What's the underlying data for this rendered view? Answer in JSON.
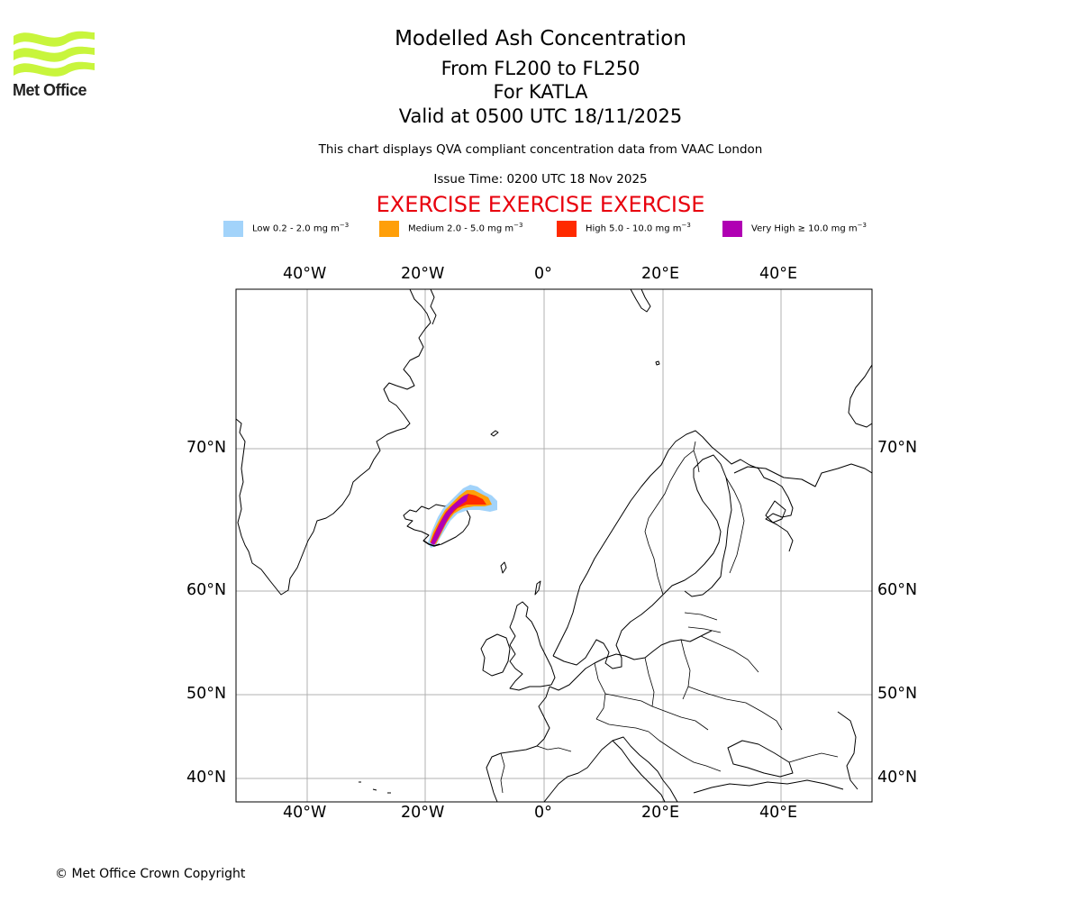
{
  "logo": {
    "text": "Met Office",
    "color": "#c8f53c"
  },
  "header": {
    "title": "Modelled Ash Concentration",
    "levels": "From FL200 to FL250",
    "volcano": "For KATLA",
    "valid": "Valid at 0500 UTC 18/11/2025",
    "description": "This chart displays QVA compliant concentration data from VAAC London",
    "issue_time": "Issue Time: 0200 UTC 18 Nov 2025",
    "exercise": "EXERCISE EXERCISE EXERCISE"
  },
  "legend": [
    {
      "label": "Low 0.2 - 2.0 mg m",
      "exp": "−3",
      "color": "#a2d3fa"
    },
    {
      "label": "Medium 2.0 - 5.0 mg m",
      "exp": "−3",
      "color": "#ff9f09"
    },
    {
      "label": "High 5.0 - 10.0 mg m",
      "exp": "−3",
      "color": "#ff2a00"
    },
    {
      "label": "Very High  ≥  10.0 mg m",
      "exp": "−3",
      "color": "#b000b3"
    }
  ],
  "map": {
    "lon_labels": [
      "40°W",
      "20°W",
      "0°",
      "20°E",
      "40°E"
    ],
    "lat_labels": [
      "70°N",
      "60°N",
      "50°N",
      "40°N"
    ],
    "gridline_color": "#b0b0b0"
  },
  "footer": {
    "copyright": "© Met Office Crown Copyright"
  }
}
